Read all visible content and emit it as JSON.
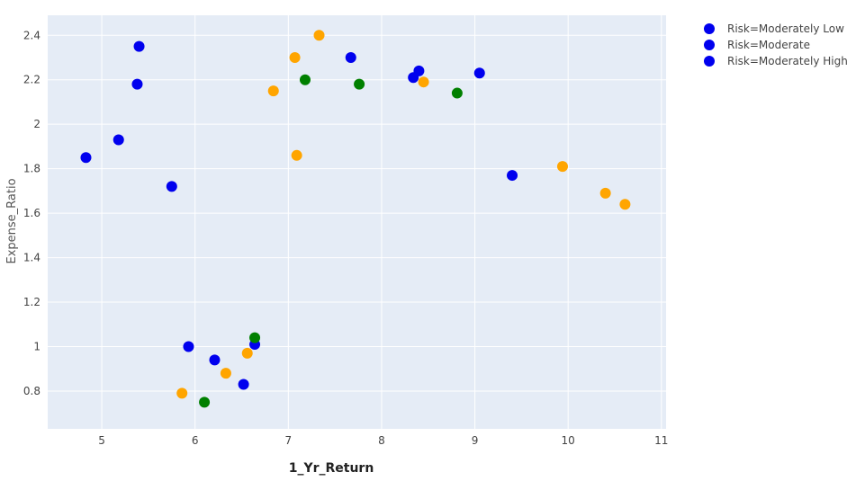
{
  "chart_data": {
    "type": "scatter",
    "xlabel": "1_Yr_Return",
    "ylabel": "Expense_Ratio",
    "xlim": [
      4.42,
      11.05
    ],
    "ylim": [
      0.63,
      2.49
    ],
    "xticks": [
      5,
      6,
      7,
      8,
      9,
      10,
      11
    ],
    "yticks": [
      0.8,
      1,
      1.2,
      1.4,
      1.6,
      1.8,
      2,
      2.2,
      2.4
    ],
    "xtick_labels": [
      "5",
      "6",
      "7",
      "8",
      "9",
      "10",
      "11"
    ],
    "ytick_labels": [
      "0.8",
      "1",
      "1.2",
      "1.4",
      "1.6",
      "1.8",
      "2",
      "2.2",
      "2.4"
    ],
    "grid": true,
    "legend_placement": "top-right outside",
    "legend_marker_color": "#0000ee",
    "series": [
      {
        "name": "Risk=Moderately Low",
        "color": "#0000ee",
        "points": [
          [
            4.83,
            1.85
          ],
          [
            5.18,
            1.93
          ],
          [
            5.38,
            2.18
          ],
          [
            5.4,
            2.35
          ],
          [
            5.75,
            1.72
          ],
          [
            5.93,
            1.0
          ],
          [
            6.21,
            0.94
          ],
          [
            6.52,
            0.83
          ],
          [
            6.64,
            1.01
          ],
          [
            7.67,
            2.3
          ],
          [
            8.34,
            2.21
          ],
          [
            8.4,
            2.24
          ],
          [
            9.05,
            2.23
          ],
          [
            9.4,
            1.77
          ]
        ]
      },
      {
        "name": "Risk=Moderate",
        "color": "#ffa500",
        "points": [
          [
            5.86,
            0.79
          ],
          [
            6.33,
            0.88
          ],
          [
            6.56,
            0.97
          ],
          [
            6.84,
            2.15
          ],
          [
            7.07,
            2.3
          ],
          [
            7.09,
            1.86
          ],
          [
            7.33,
            2.4
          ],
          [
            8.45,
            2.19
          ],
          [
            9.94,
            1.81
          ],
          [
            10.4,
            1.69
          ],
          [
            10.61,
            1.64
          ]
        ]
      },
      {
        "name": "Risk=Moderately High",
        "color": "#008000",
        "points": [
          [
            6.1,
            0.75
          ],
          [
            6.64,
            1.04
          ],
          [
            7.18,
            2.2
          ],
          [
            7.76,
            2.18
          ],
          [
            8.81,
            2.14
          ]
        ]
      }
    ]
  }
}
